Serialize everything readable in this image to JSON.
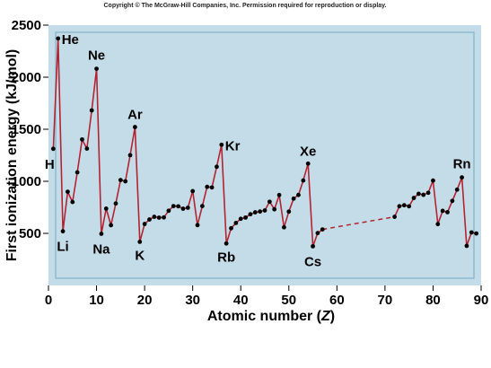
{
  "copyright": "Copyright © The McGraw-Hill Companies, Inc. Permission required for reproduction or display.",
  "chart_data": {
    "type": "line",
    "xlabel_prefix": "Atomic number (",
    "xlabel_var": "Z",
    "xlabel_suffix": ")",
    "ylabel": "First ionization energy (kJ/mol)",
    "xlim": [
      0,
      90
    ],
    "ylim": [
      0,
      2500
    ],
    "xticks": [
      "0",
      "10",
      "20",
      "30",
      "40",
      "50",
      "60",
      "70",
      "80",
      "90"
    ],
    "yticks": [
      "500",
      "1000",
      "1500",
      "2000",
      "2500"
    ],
    "grid": false,
    "colors": {
      "background": "#c4dce8",
      "frame": "#8fbad0",
      "line": "#b22432",
      "point": "#000000"
    },
    "series": [
      {
        "x": [
          1,
          2,
          3,
          4,
          5,
          6,
          7,
          8,
          9,
          10,
          11,
          12,
          13,
          14,
          15,
          16,
          17,
          18,
          19,
          20,
          21,
          22,
          23,
          24,
          25,
          26,
          27,
          28,
          29,
          30,
          31,
          32,
          33,
          34,
          35,
          36,
          37,
          38,
          39,
          40,
          41,
          42,
          43,
          44,
          45,
          46,
          47,
          48,
          49,
          50,
          51,
          52,
          53,
          54,
          55,
          56,
          57
        ],
        "values": [
          1312,
          2372,
          520,
          900,
          801,
          1086,
          1402,
          1314,
          1681,
          2081,
          496,
          738,
          578,
          787,
          1012,
          1000,
          1251,
          1521,
          419,
          590,
          633,
          659,
          651,
          653,
          717,
          762,
          760,
          737,
          746,
          906,
          579,
          762,
          947,
          941,
          1140,
          1351,
          403,
          549,
          600,
          640,
          652,
          684,
          702,
          710,
          720,
          804,
          731,
          868,
          558,
          709,
          834,
          869,
          1008,
          1170,
          376,
          503,
          538
        ]
      },
      {
        "x": [
          72,
          73,
          74,
          75,
          76,
          77,
          78,
          79,
          80,
          81,
          82,
          83,
          84,
          85,
          86,
          87,
          88,
          89
        ],
        "values": [
          659,
          761,
          770,
          760,
          840,
          880,
          870,
          890,
          1007,
          589,
          716,
          703,
          812,
          920,
          1037,
          380,
          509,
          499
        ]
      }
    ],
    "gap": {
      "from_x": 57,
      "to_x": 72,
      "style": "dashed"
    },
    "annotations": [
      {
        "text": "H",
        "x": 1
      },
      {
        "text": "He",
        "x": 2
      },
      {
        "text": "Li",
        "x": 3
      },
      {
        "text": "Ne",
        "x": 10
      },
      {
        "text": "Na",
        "x": 11
      },
      {
        "text": "Ar",
        "x": 18
      },
      {
        "text": "K",
        "x": 19
      },
      {
        "text": "Kr",
        "x": 36
      },
      {
        "text": "Rb",
        "x": 37
      },
      {
        "text": "Xe",
        "x": 54
      },
      {
        "text": "Cs",
        "x": 55
      },
      {
        "text": "Rn",
        "x": 86
      }
    ]
  }
}
